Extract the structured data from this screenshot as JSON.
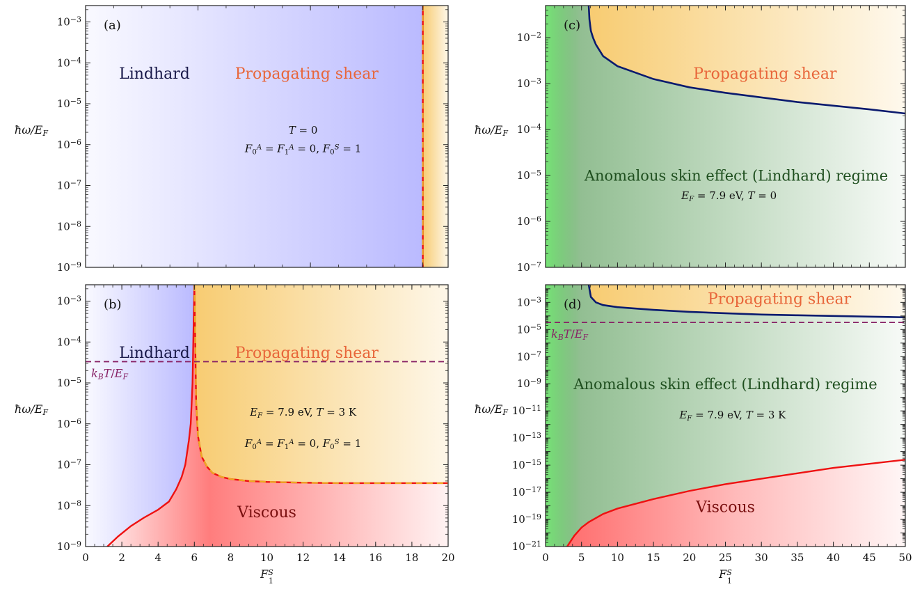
{
  "chart_data": [
    {
      "panel": "(a)",
      "type": "area",
      "xlim": [
        0,
        6.45
      ],
      "x_scale": "linear",
      "x_ticks": [
        0,
        2,
        4,
        6,
        8,
        10,
        12,
        14,
        16,
        18,
        20
      ],
      "show_x_ticklabels": false,
      "xlabel": "",
      "ylabel": "ħω/E_F",
      "y_scale": "log",
      "ylim_exp": [
        -9,
        -2.6
      ],
      "y_ticks_exp": [
        -9,
        -8,
        -7,
        -6,
        -5,
        -4,
        -3
      ],
      "regions": [
        {
          "name": "Lindhard",
          "label": "Lindhard",
          "color": "#8c8cff"
        },
        {
          "name": "Propagating shear",
          "label": "Propagating shear",
          "color": "#f7c96a",
          "label_color": "#e8663a"
        }
      ],
      "boundaries": [
        {
          "name": "shear-boundary",
          "x_constant": 6.0,
          "color": "#ee1111",
          "overlay_dash_color": "#eeaa22"
        }
      ],
      "annotations": [
        "T = 0",
        "F0A = F1A = 0, F0S = 1"
      ]
    },
    {
      "panel": "(b)",
      "type": "area",
      "xlim": [
        0,
        20
      ],
      "x_scale": "linear",
      "x_ticks": [
        0,
        2,
        4,
        6,
        8,
        10,
        12,
        14,
        16,
        18,
        20
      ],
      "show_x_ticklabels": true,
      "xlabel": "F_1^S",
      "ylabel": "ħω/E_F",
      "y_scale": "log",
      "ylim_exp": [
        -9,
        -2.6
      ],
      "y_ticks_exp": [
        -9,
        -8,
        -7,
        -6,
        -5,
        -4,
        -3
      ],
      "regions": [
        {
          "name": "Lindhard",
          "label": "Lindhard",
          "color": "#8c8cff"
        },
        {
          "name": "Propagating shear",
          "label": "Propagating shear",
          "color": "#f7c96a",
          "label_color": "#e8663a"
        },
        {
          "name": "Viscous",
          "label": "Viscous",
          "color": "#ff6666"
        }
      ],
      "boundaries": [
        {
          "name": "lindhard-viscous-boundary",
          "x": [
            1.2,
            1.8,
            2.5,
            3.2,
            4.0,
            4.6,
            5.0,
            5.3,
            5.5,
            5.6,
            5.7,
            5.8,
            5.85,
            5.9,
            6.0
          ],
          "y_exp": [
            -9.0,
            -8.75,
            -8.5,
            -8.3,
            -8.1,
            -7.9,
            -7.6,
            -7.3,
            -7.0,
            -6.7,
            -6.4,
            -6.0,
            -5.5,
            -5.0,
            -2.6
          ],
          "color": "#ee1111"
        },
        {
          "name": "shear-viscous-boundary",
          "x": [
            6.0,
            6.1,
            6.2,
            6.4,
            6.7,
            7.0,
            7.5,
            8.0,
            9.0,
            10.0,
            12.0,
            14.0,
            16.0,
            18.0,
            20.0
          ],
          "y_exp": [
            -2.6,
            -5.5,
            -6.3,
            -6.8,
            -7.05,
            -7.2,
            -7.3,
            -7.35,
            -7.4,
            -7.42,
            -7.44,
            -7.45,
            -7.45,
            -7.45,
            -7.45
          ],
          "color": "#eeaa22",
          "dashed": true
        },
        {
          "name": "kBT-line",
          "y_constant_exp": -4.48,
          "color": "#882266",
          "dashed": true,
          "label": "k_BT/E_F"
        }
      ],
      "annotations": [
        "E_F = 7.9 eV, T = 3 K",
        "F0A = F1A = 0, F0S = 1"
      ]
    },
    {
      "panel": "(c)",
      "type": "area",
      "xlim": [
        0,
        50
      ],
      "x_scale": "linear",
      "x_ticks": [
        0,
        5,
        10,
        15,
        20,
        25,
        30,
        35,
        40,
        45,
        50
      ],
      "show_x_ticklabels": false,
      "xlabel": "",
      "ylabel": "ħω/E_F",
      "y_scale": "log",
      "ylim_exp": [
        -7,
        -1.3
      ],
      "y_ticks_exp": [
        -7,
        -6,
        -5,
        -4,
        -3,
        -2
      ],
      "regions": [
        {
          "name": "Anomalous skin effect (Lindhard) regime",
          "label": "Anomalous skin effect (Lindhard) regime",
          "color": "#3a8a3a",
          "label_color": "#1f4f1f"
        },
        {
          "name": "Propagating shear",
          "label": "Propagating shear",
          "color": "#f7c96a",
          "label_color": "#e8663a"
        }
      ],
      "boundaries": [
        {
          "name": "shear-boundary",
          "x": [
            6.0,
            6.1,
            6.3,
            6.6,
            7.0,
            8.0,
            10.0,
            15.0,
            20.0,
            25.0,
            30.0,
            35.0,
            40.0,
            45.0,
            50.0
          ],
          "y_exp": [
            -1.3,
            -1.6,
            -1.85,
            -2.0,
            -2.15,
            -2.4,
            -2.62,
            -2.9,
            -3.08,
            -3.2,
            -3.3,
            -3.4,
            -3.48,
            -3.56,
            -3.65
          ],
          "color": "#0a1a6e"
        }
      ],
      "annotations": [
        "E_F = 7.9 eV, T = 0"
      ]
    },
    {
      "panel": "(d)",
      "type": "area",
      "xlim": [
        0,
        50
      ],
      "x_scale": "linear",
      "x_ticks": [
        0,
        5,
        10,
        15,
        20,
        25,
        30,
        35,
        40,
        45,
        50
      ],
      "show_x_ticklabels": true,
      "xlabel": "F_1^S",
      "ylabel": "ħω/E_F",
      "y_scale": "log",
      "ylim_exp": [
        -21,
        -1.7
      ],
      "y_ticks_exp": [
        -21,
        -19,
        -17,
        -15,
        -13,
        -11,
        -9,
        -7,
        -5,
        -3
      ],
      "regions": [
        {
          "name": "Anomalous skin effect (Lindhard) regime",
          "label": "Anomalous skin effect (Lindhard) regime",
          "color": "#3a8a3a",
          "label_color": "#1f4f1f"
        },
        {
          "name": "Propagating shear",
          "label": "Propagating shear",
          "color": "#f7c96a",
          "label_color": "#e8663a"
        },
        {
          "name": "Viscous",
          "label": "Viscous",
          "color": "#ff6666"
        }
      ],
      "boundaries": [
        {
          "name": "shear-boundary",
          "x": [
            6.0,
            6.3,
            7.0,
            8.0,
            10.0,
            15.0,
            20.0,
            25.0,
            30.0,
            35.0,
            40.0,
            45.0,
            50.0
          ],
          "y_exp": [
            -1.7,
            -2.6,
            -3.0,
            -3.2,
            -3.35,
            -3.55,
            -3.7,
            -3.8,
            -3.9,
            -3.95,
            -4.0,
            -4.05,
            -4.1
          ],
          "color": "#0a1a6e"
        },
        {
          "name": "viscous-boundary",
          "x": [
            3.0,
            3.5,
            4.0,
            5.0,
            6.0,
            8.0,
            10.0,
            15.0,
            20.0,
            25.0,
            30.0,
            35.0,
            40.0,
            45.0,
            50.0
          ],
          "y_exp": [
            -21.0,
            -20.6,
            -20.2,
            -19.6,
            -19.2,
            -18.6,
            -18.2,
            -17.5,
            -16.9,
            -16.4,
            -16.0,
            -15.6,
            -15.2,
            -14.9,
            -14.6
          ],
          "color": "#ee1111"
        },
        {
          "name": "kBT-line",
          "y_constant_exp": -4.48,
          "color": "#882266",
          "dashed": true,
          "label": "k_BT/E_F"
        }
      ],
      "annotations": [
        "E_F = 7.9 eV, T = 3 K"
      ]
    }
  ]
}
